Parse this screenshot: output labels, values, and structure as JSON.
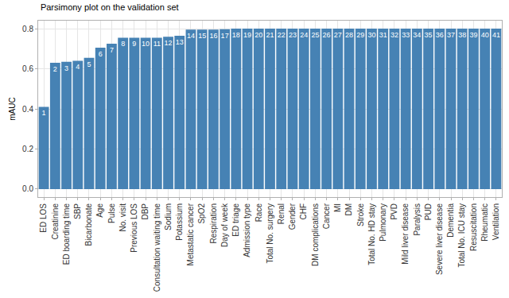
{
  "chart_data": {
    "type": "bar",
    "title": "Parsimony plot on the validation set",
    "y_label": "mAUC",
    "categories": [
      "ED LOS",
      "Creatinine",
      "ED boarding time",
      "SBP",
      "Bicarbonate",
      "Age",
      "Pulse",
      "No. visit",
      "Previous LOS",
      "DBP",
      "Consultation waiting time",
      "Sodium",
      "Potassium",
      "Metastatic cancer",
      "SpO2",
      "Respiration",
      "Day of week",
      "ED triage",
      "Admission type",
      "Race",
      "Total No. surgery",
      "Renal",
      "Gender",
      "CHF",
      "DM complications",
      "Cancer",
      "MI",
      "DM",
      "Stroke",
      "Total No. HD stay",
      "Pulmonary",
      "PVD",
      "Mild liver disease",
      "Paralysis",
      "PUD",
      "Severe liver disease",
      "Dementia",
      "Total No. ICU stay",
      "Resuscitation",
      "Rheumatic",
      "Ventilation"
    ],
    "values": [
      0.41,
      0.63,
      0.635,
      0.64,
      0.655,
      0.705,
      0.725,
      0.755,
      0.755,
      0.755,
      0.755,
      0.76,
      0.765,
      0.795,
      0.795,
      0.795,
      0.797,
      0.8,
      0.8,
      0.8,
      0.8,
      0.8,
      0.8,
      0.8,
      0.8,
      0.8,
      0.8,
      0.8,
      0.8,
      0.8,
      0.8,
      0.8,
      0.8,
      0.8,
      0.8,
      0.8,
      0.8,
      0.8,
      0.8,
      0.8,
      0.8
    ],
    "annotations": [
      "1",
      "2",
      "3",
      "4",
      "5",
      "6",
      "7",
      "8",
      "9",
      "10",
      "11",
      "12",
      "13",
      "14",
      "15",
      "16",
      "17",
      "18",
      "19",
      "20",
      "21",
      "22",
      "23",
      "24",
      "25",
      "26",
      "27",
      "28",
      "29",
      "30",
      "31",
      "32",
      "33",
      "34",
      "35",
      "36",
      "37",
      "38",
      "39",
      "40",
      "41"
    ],
    "color": "#4682b4",
    "ylim": [
      -0.04,
      0.84
    ],
    "yticks": [
      {
        "value": 0,
        "label": "0.0"
      },
      {
        "value": 0.2,
        "label": "0.2"
      },
      {
        "value": 0.4,
        "label": "0.4"
      },
      {
        "value": 0.6,
        "label": "0.6"
      },
      {
        "value": 0.8,
        "label": "0.8"
      }
    ],
    "grid": true
  }
}
